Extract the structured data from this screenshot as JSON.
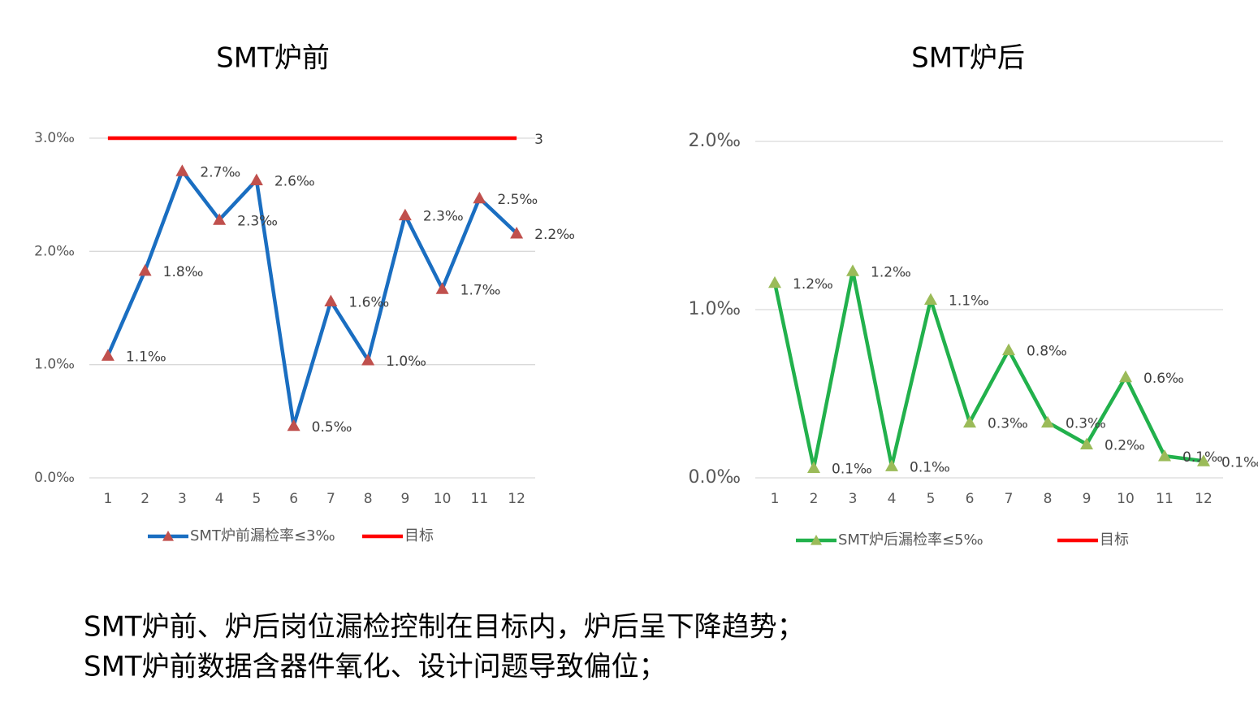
{
  "chart_data": [
    {
      "type": "line",
      "title": "SMT炉前",
      "categories": [
        "1",
        "2",
        "3",
        "4",
        "5",
        "6",
        "7",
        "8",
        "9",
        "10",
        "11",
        "12"
      ],
      "series": [
        {
          "name": "SMT炉前漏检率≤3‰",
          "color": "#1a6ec1",
          "marker": "triangle",
          "marker_color": "#c0504d",
          "values": [
            1.08,
            1.83,
            2.71,
            2.28,
            2.63,
            0.46,
            1.56,
            1.04,
            2.32,
            1.67,
            2.47,
            2.16
          ],
          "value_labels": [
            "1.1‰",
            "1.8‰",
            "2.7‰",
            "2.3‰",
            "2.6‰",
            "0.5‰",
            "1.6‰",
            "1.0‰",
            "2.3‰",
            "1.7‰",
            "2.5‰",
            "2.2‰"
          ]
        },
        {
          "name": "目标",
          "color": "#ff0000",
          "values": [
            3,
            3,
            3,
            3,
            3,
            3,
            3,
            3,
            3,
            3,
            3,
            3
          ],
          "value_labels": [
            null,
            null,
            null,
            null,
            null,
            null,
            null,
            null,
            null,
            null,
            null,
            "3"
          ]
        }
      ],
      "ylim": [
        0,
        3
      ],
      "yticks": [
        {
          "value": 0,
          "label": "0.0‰"
        },
        {
          "value": 1,
          "label": "1.0‰"
        },
        {
          "value": 2,
          "label": "2.0‰"
        },
        {
          "value": 3,
          "label": "3.0‰"
        }
      ],
      "grid": true,
      "legend": "bottom"
    },
    {
      "type": "line",
      "title": "SMT炉后",
      "categories": [
        "1",
        "2",
        "3",
        "4",
        "5",
        "6",
        "7",
        "8",
        "9",
        "10",
        "11",
        "12"
      ],
      "series": [
        {
          "name": "SMT炉后漏检率≤5‰",
          "color": "#22b14c",
          "marker": "triangle",
          "marker_color": "#9bbb59",
          "values": [
            1.16,
            0.06,
            1.23,
            0.07,
            1.06,
            0.33,
            0.76,
            0.33,
            0.2,
            0.6,
            0.13,
            0.1
          ],
          "value_labels": [
            "1.2‰",
            "0.1‰",
            "1.2‰",
            "0.1‰",
            "1.1‰",
            "0.3‰",
            "0.8‰",
            "0.3‰",
            "0.2‰",
            "0.6‰",
            "0.1‰",
            "0.1‰"
          ]
        },
        {
          "name": "目标",
          "color": "#ff0000"
        }
      ],
      "ylim": [
        0,
        2
      ],
      "yticks": [
        {
          "value": 0,
          "label": "0.0‰"
        },
        {
          "value": 1,
          "label": "1.0‰"
        },
        {
          "value": 2,
          "label": "2.0‰"
        }
      ],
      "grid": true,
      "legend": "bottom"
    }
  ],
  "notes": [
    "SMT炉前、炉后岗位漏检控制在目标内，炉后呈下降趋势；",
    "SMT炉前数据含器件氧化、设计问题导致偏位；"
  ]
}
